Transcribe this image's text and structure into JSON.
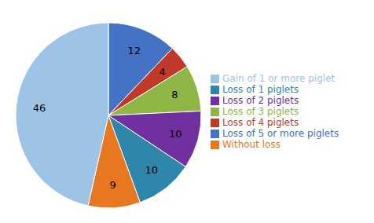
{
  "chart_data": {
    "type": "pie",
    "categories": [
      "Loss of 5 or more piglets",
      "Loss of 4 piglets",
      "Loss of 3 piglets",
      "Loss of 2 piglets",
      "Loss of 1 piglets",
      "Without loss",
      "Gain of 1 or more piglet"
    ],
    "values": [
      12,
      4,
      8,
      10,
      10,
      9,
      46
    ],
    "colors": [
      "#4472C4",
      "#C0392B",
      "#8DB645",
      "#7030A0",
      "#2E86AB",
      "#E87722",
      "#9DC3E6"
    ],
    "data_labels": true,
    "legend": "right"
  }
}
